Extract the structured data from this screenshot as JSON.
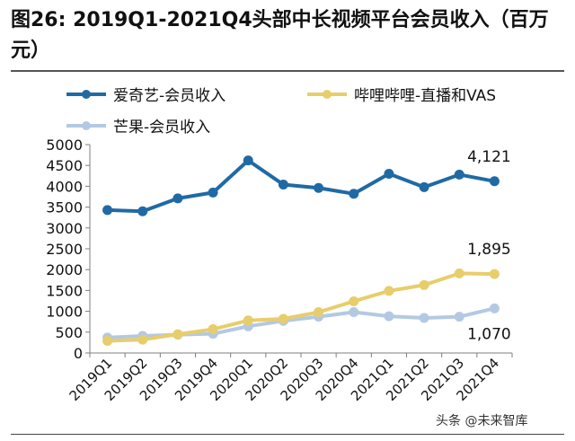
{
  "title": "图26: 2019Q1-2021Q4头部中长视频平台会员收入（百万元）",
  "watermark": "头条 @未来智库",
  "colors": {
    "iqiyi": "#1f6aa5",
    "bilibili": "#e8cd6b",
    "mango": "#b3c9e3",
    "grid_axis": "#7f7f7f"
  },
  "chart_data": {
    "type": "line",
    "title": "2019Q1-2021Q4头部中长视频平台会员收入（百万元）",
    "categories": [
      "2019Q1",
      "2019Q2",
      "2019Q3",
      "2019Q4",
      "2020Q1",
      "2020Q2",
      "2020Q3",
      "2020Q4",
      "2021Q1",
      "2021Q2",
      "2021Q3",
      "2021Q4"
    ],
    "ylim": [
      0,
      5000
    ],
    "yticks": [
      "0",
      "500",
      "1000",
      "1500",
      "2000",
      "2500",
      "3000",
      "3500",
      "4000",
      "4500",
      "5000"
    ],
    "series": [
      {
        "name": "爱奇艺-会员收入",
        "color": "#1f6aa5",
        "values": [
          3430,
          3400,
          3710,
          3850,
          4620,
          4040,
          3960,
          3820,
          4300,
          3980,
          4280,
          4121
        ]
      },
      {
        "name": "哔哩哔哩-直播和VAS",
        "color": "#e8cd6b",
        "values": [
          290,
          320,
          450,
          570,
          780,
          820,
          980,
          1240,
          1490,
          1630,
          1910,
          1895
        ]
      },
      {
        "name": "芒果-会员收入",
        "color": "#b3c9e3",
        "values": [
          370,
          410,
          440,
          460,
          640,
          770,
          870,
          980,
          880,
          840,
          870,
          1070
        ]
      }
    ],
    "annotations": [
      "4,121",
      "1,895",
      "1,070"
    ]
  }
}
